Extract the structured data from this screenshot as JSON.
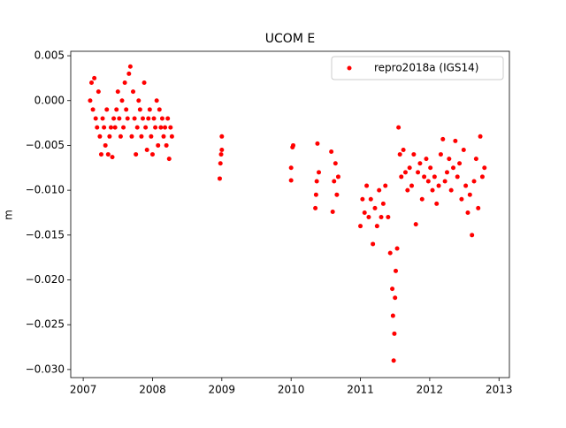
{
  "chart_data": {
    "type": "scatter",
    "title": "UCOM E",
    "ylabel": "m",
    "legend": "upper right",
    "color": "#ff0000",
    "xlim": [
      2006.82,
      2013.15
    ],
    "ylim": [
      -0.0309,
      0.0055
    ],
    "xticks": [
      2007,
      2008,
      2009,
      2010,
      2011,
      2012,
      2013
    ],
    "yticks": [
      {
        "value": 0.005,
        "label": "0.005"
      },
      {
        "value": 0.0,
        "label": "0.000"
      },
      {
        "value": -0.005,
        "label": "−0.005"
      },
      {
        "value": -0.01,
        "label": "−0.010"
      },
      {
        "value": -0.015,
        "label": "−0.015"
      },
      {
        "value": -0.02,
        "label": "−0.020"
      },
      {
        "value": -0.025,
        "label": "−0.025"
      },
      {
        "value": -0.03,
        "label": "−0.030"
      }
    ],
    "series": [
      {
        "name": "repro2018a (IGS14)",
        "color": "#ff0000",
        "x": [
          2007.1,
          2007.12,
          2007.14,
          2007.16,
          2007.18,
          2007.2,
          2007.22,
          2007.24,
          2007.26,
          2007.28,
          2007.3,
          2007.32,
          2007.34,
          2007.36,
          2007.38,
          2007.4,
          2007.42,
          2007.44,
          2007.46,
          2007.48,
          2007.5,
          2007.52,
          2007.54,
          2007.56,
          2007.58,
          2007.6,
          2007.62,
          2007.64,
          2007.66,
          2007.68,
          2007.7,
          2007.72,
          2007.74,
          2007.76,
          2007.78,
          2007.8,
          2007.82,
          2007.84,
          2007.86,
          2007.88,
          2007.9,
          2007.92,
          2007.94,
          2007.96,
          2007.98,
          2008.0,
          2008.02,
          2008.04,
          2008.06,
          2008.08,
          2008.1,
          2008.12,
          2008.14,
          2008.16,
          2008.18,
          2008.2,
          2008.22,
          2008.24,
          2008.26,
          2008.28,
          2008.97,
          2008.98,
          2008.99,
          2009.0,
          2009.0,
          2010.0,
          2010.0,
          2010.02,
          2010.03,
          2010.35,
          2010.36,
          2010.37,
          2010.38,
          2010.4,
          2010.58,
          2010.6,
          2010.62,
          2010.64,
          2010.66,
          2010.68,
          2011.0,
          2011.03,
          2011.06,
          2011.09,
          2011.12,
          2011.15,
          2011.18,
          2011.21,
          2011.24,
          2011.27,
          2011.3,
          2011.33,
          2011.36,
          2011.4,
          2011.43,
          2011.46,
          2011.47,
          2011.48,
          2011.49,
          2011.5,
          2011.51,
          2011.53,
          2011.55,
          2011.57,
          2011.59,
          2011.62,
          2011.65,
          2011.68,
          2011.71,
          2011.74,
          2011.77,
          2011.8,
          2011.83,
          2011.86,
          2011.89,
          2011.92,
          2011.95,
          2011.98,
          2012.01,
          2012.04,
          2012.07,
          2012.1,
          2012.13,
          2012.16,
          2012.19,
          2012.22,
          2012.25,
          2012.28,
          2012.31,
          2012.34,
          2012.37,
          2012.4,
          2012.43,
          2012.46,
          2012.49,
          2012.52,
          2012.55,
          2012.58,
          2012.61,
          2012.64,
          2012.67,
          2012.7,
          2012.73,
          2012.76,
          2012.79
        ],
        "values": [
          0.0,
          0.002,
          -0.001,
          0.0025,
          -0.002,
          -0.003,
          0.001,
          -0.004,
          -0.006,
          -0.002,
          -0.003,
          -0.005,
          -0.001,
          -0.006,
          -0.004,
          -0.003,
          -0.0063,
          -0.002,
          -0.003,
          -0.001,
          0.001,
          -0.002,
          -0.004,
          0.0,
          -0.003,
          0.002,
          -0.001,
          -0.002,
          0.003,
          0.0038,
          -0.004,
          0.001,
          -0.002,
          -0.006,
          -0.003,
          0.0,
          -0.001,
          -0.004,
          -0.002,
          0.002,
          -0.003,
          -0.0055,
          -0.002,
          -0.001,
          -0.004,
          -0.006,
          -0.002,
          -0.003,
          0.0,
          -0.005,
          -0.001,
          -0.003,
          -0.002,
          -0.004,
          -0.003,
          -0.005,
          -0.002,
          -0.0065,
          -0.003,
          -0.004,
          -0.0087,
          -0.007,
          -0.006,
          -0.004,
          -0.0055,
          -0.0089,
          -0.0075,
          -0.0052,
          -0.005,
          -0.012,
          -0.0105,
          -0.009,
          -0.0048,
          -0.008,
          -0.0057,
          -0.0124,
          -0.009,
          -0.007,
          -0.0105,
          -0.0085,
          -0.014,
          -0.011,
          -0.0125,
          -0.0095,
          -0.013,
          -0.011,
          -0.016,
          -0.012,
          -0.014,
          -0.01,
          -0.013,
          -0.0115,
          -0.0095,
          -0.013,
          -0.017,
          -0.021,
          -0.024,
          -0.029,
          -0.026,
          -0.022,
          -0.019,
          -0.0165,
          -0.003,
          -0.006,
          -0.0085,
          -0.0055,
          -0.008,
          -0.01,
          -0.0075,
          -0.0095,
          -0.006,
          -0.0138,
          -0.008,
          -0.007,
          -0.011,
          -0.0085,
          -0.0065,
          -0.009,
          -0.0075,
          -0.01,
          -0.0085,
          -0.0115,
          -0.0095,
          -0.006,
          -0.0043,
          -0.009,
          -0.008,
          -0.0065,
          -0.01,
          -0.0075,
          -0.0045,
          -0.0085,
          -0.007,
          -0.011,
          -0.0055,
          -0.0095,
          -0.0125,
          -0.0105,
          -0.015,
          -0.009,
          -0.0065,
          -0.012,
          -0.004,
          -0.0085,
          -0.0075
        ]
      }
    ]
  }
}
